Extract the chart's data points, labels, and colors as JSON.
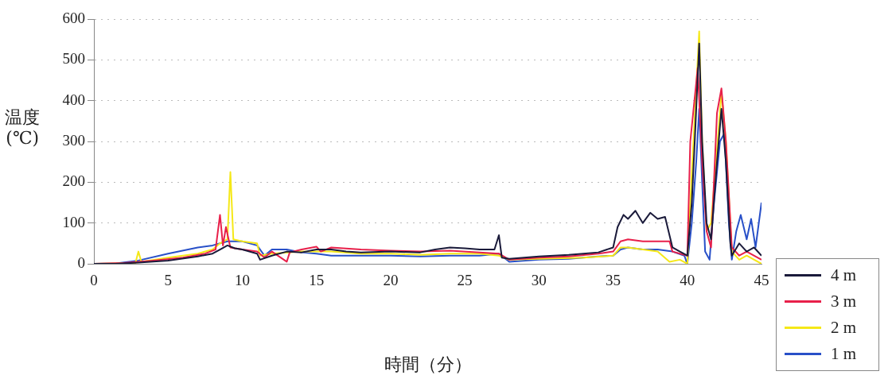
{
  "chart_data": {
    "type": "line",
    "xlabel": "時間（分）",
    "ylabel": "温度(℃)",
    "xlim": [
      0,
      45
    ],
    "xticks": [
      0,
      5,
      10,
      15,
      20,
      25,
      30,
      35,
      40,
      45
    ],
    "ylim": [
      0,
      600
    ],
    "yticks": [
      0,
      100,
      200,
      300,
      400,
      500,
      600
    ],
    "grid": "y",
    "legend": "bottom right",
    "marker": "none",
    "line_style": "solid",
    "series": [
      {
        "name": "4 m",
        "color": "#1a1a3a",
        "x": [
          0,
          1.5,
          3,
          5,
          7,
          8,
          8.5,
          9,
          9.5,
          10,
          11,
          11.2,
          12,
          13,
          14,
          15,
          16,
          17,
          18,
          20,
          22,
          23,
          24,
          25,
          26,
          27,
          27.3,
          27.5,
          28,
          29,
          30,
          31,
          32,
          33,
          34,
          35,
          35.3,
          35.7,
          36,
          36.5,
          37,
          37.5,
          38,
          38.5,
          39,
          39.5,
          40,
          40.3,
          40.5,
          40.8,
          41,
          41.3,
          41.6,
          42,
          42.3,
          42.6,
          42.9,
          43,
          43.5,
          44,
          44.5,
          45
        ],
        "values": [
          0,
          0,
          3,
          8,
          18,
          25,
          35,
          45,
          38,
          35,
          25,
          10,
          20,
          30,
          28,
          35,
          35,
          30,
          28,
          30,
          28,
          35,
          40,
          38,
          35,
          35,
          70,
          15,
          12,
          15,
          18,
          20,
          22,
          25,
          28,
          40,
          90,
          120,
          110,
          130,
          100,
          125,
          110,
          115,
          40,
          30,
          20,
          150,
          300,
          540,
          300,
          100,
          60,
          250,
          380,
          250,
          50,
          20,
          50,
          30,
          40,
          20
        ]
      },
      {
        "name": "3 m",
        "color": "#e8204a",
        "x": [
          0,
          2,
          4,
          6,
          7.5,
          8.2,
          8.5,
          8.7,
          8.9,
          9.2,
          10,
          11,
          11.5,
          12,
          13,
          13.2,
          14,
          15,
          15.3,
          16,
          18,
          20,
          22,
          24,
          26,
          27.3,
          28,
          30,
          32,
          34,
          35,
          35.5,
          36,
          37,
          38,
          38.8,
          39,
          40,
          40.2,
          40.7,
          41,
          41.3,
          41.6,
          42,
          42.3,
          42.6,
          43,
          43.5,
          44,
          45
        ],
        "values": [
          0,
          2,
          8,
          15,
          25,
          35,
          120,
          45,
          90,
          40,
          35,
          30,
          15,
          30,
          5,
          28,
          35,
          42,
          30,
          40,
          35,
          32,
          30,
          32,
          28,
          25,
          10,
          15,
          18,
          25,
          30,
          55,
          60,
          55,
          55,
          55,
          30,
          20,
          300,
          480,
          250,
          80,
          40,
          370,
          430,
          300,
          40,
          20,
          30,
          10
        ]
      },
      {
        "name": "2 m",
        "color": "#f5e818",
        "x": [
          0,
          2.8,
          3,
          3.2,
          5,
          7,
          8,
          8.5,
          9,
          9.2,
          9.4,
          10,
          11,
          11.2,
          12,
          14,
          16,
          18,
          20,
          22,
          24,
          26,
          27.3,
          28,
          30,
          33,
          35,
          35.5,
          36,
          37,
          38,
          38.8,
          39.5,
          40,
          40.2,
          40.8,
          41,
          41.3,
          41.6,
          42,
          42.3,
          42.6,
          43,
          43.5,
          44,
          45
        ],
        "values": [
          0,
          2,
          30,
          5,
          15,
          25,
          35,
          50,
          60,
          225,
          60,
          55,
          50,
          20,
          25,
          30,
          30,
          25,
          25,
          22,
          25,
          25,
          20,
          10,
          12,
          15,
          20,
          40,
          40,
          35,
          30,
          5,
          10,
          0,
          150,
          570,
          300,
          80,
          100,
          280,
          420,
          300,
          30,
          10,
          20,
          0
        ]
      },
      {
        "name": "1 m",
        "color": "#2850c8",
        "x": [
          0,
          1.5,
          3,
          5,
          7,
          8,
          8.5,
          9,
          10,
          11,
          11.5,
          12,
          13,
          14,
          15,
          16,
          18,
          20,
          22,
          24,
          26,
          27.3,
          28,
          30,
          32,
          34,
          35,
          35.5,
          36,
          37,
          38,
          39,
          39.8,
          40,
          40.3,
          40.6,
          40.8,
          41,
          41.2,
          41.5,
          41.8,
          42.2,
          42.5,
          42.8,
          43,
          43.3,
          43.6,
          44,
          44.3,
          44.6,
          45
        ],
        "values": [
          0,
          1,
          8,
          25,
          40,
          45,
          50,
          55,
          55,
          45,
          20,
          35,
          35,
          28,
          25,
          20,
          20,
          20,
          18,
          20,
          20,
          25,
          5,
          10,
          12,
          18,
          20,
          35,
          40,
          35,
          35,
          30,
          20,
          0,
          100,
          250,
          380,
          200,
          30,
          10,
          150,
          300,
          320,
          100,
          10,
          80,
          120,
          60,
          110,
          40,
          150
        ]
      }
    ]
  }
}
